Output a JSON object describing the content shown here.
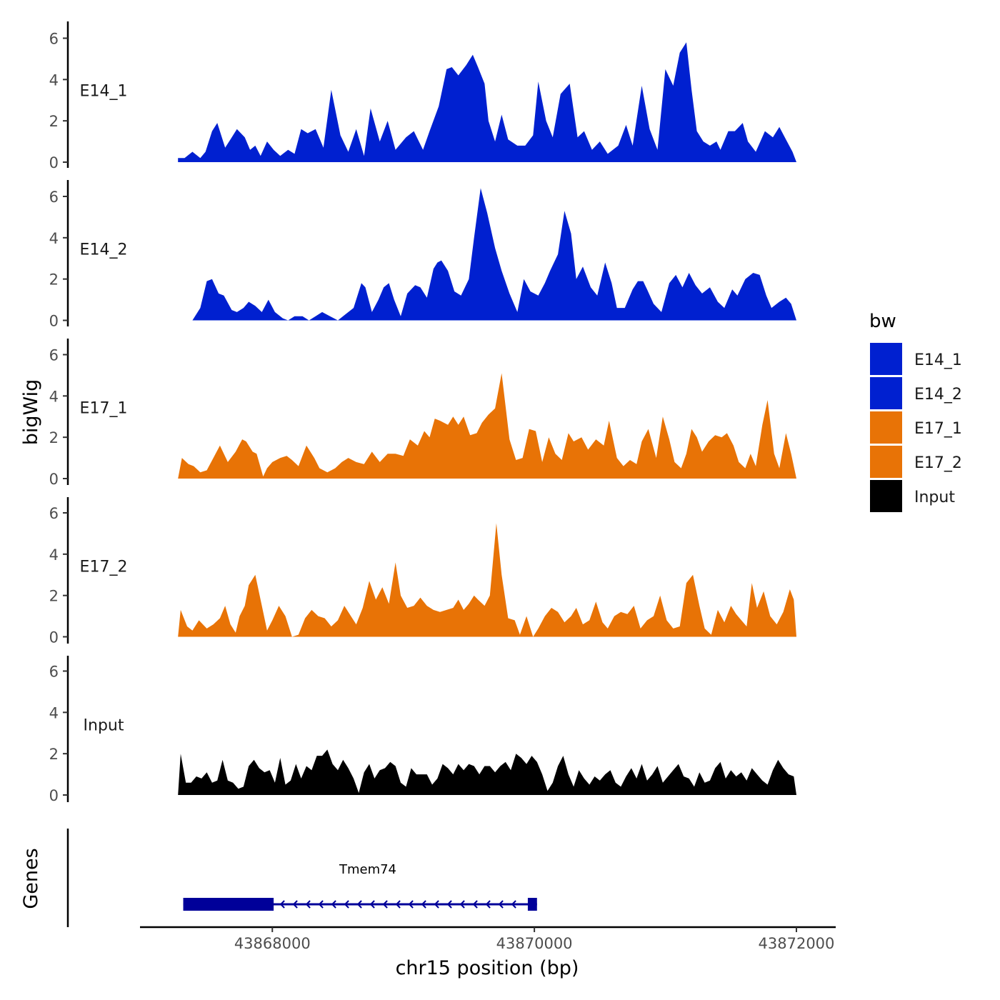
{
  "chart_data": {
    "type": "area",
    "title": "",
    "xlabel": "chr15 position (bp)",
    "ylabel": "bigWig",
    "genes_axis_label": "Genes",
    "xlim": [
      43866990,
      43872300
    ],
    "ylim": [
      0,
      6.7
    ],
    "x_ticks": [
      43868000,
      43870000,
      43872000
    ],
    "x_tick_labels": [
      "43868000",
      "43870000",
      "43872000"
    ],
    "y_ticks": [
      0,
      2,
      4,
      6
    ],
    "y_tick_labels": [
      "0",
      "2",
      "4",
      "6"
    ],
    "legend": {
      "title": "bw",
      "position": "right",
      "entries": [
        {
          "name": "E14_1",
          "color": "#0020D0"
        },
        {
          "name": "E14_2",
          "color": "#0020D0"
        },
        {
          "name": "E17_1",
          "color": "#E87306"
        },
        {
          "name": "E17_2",
          "color": "#E87306"
        },
        {
          "name": "Input",
          "color": "#000000"
        }
      ]
    },
    "series": [
      {
        "name": "E14_1",
        "color": "#0020D0",
        "x": [
          43867280,
          43867330,
          43867390,
          43867450,
          43867490,
          43867540,
          43867580,
          43867640,
          43867680,
          43867730,
          43867790,
          43867830,
          43867870,
          43867910,
          43867960,
          43868010,
          43868060,
          43868120,
          43868170,
          43868220,
          43868270,
          43868330,
          43868390,
          43868450,
          43868520,
          43868580,
          43868640,
          43868700,
          43868750,
          43868820,
          43868880,
          43868940,
          43869020,
          43869080,
          43869150,
          43869200,
          43869270,
          43869330,
          43869370,
          43869420,
          43869480,
          43869530,
          43869570,
          43869620,
          43869650,
          43869700,
          43869750,
          43869800,
          43869870,
          43869930,
          43869990,
          43870030,
          43870090,
          43870140,
          43870200,
          43870270,
          43870330,
          43870380,
          43870440,
          43870500,
          43870560,
          43870640,
          43870700,
          43870750,
          43870820,
          43870880,
          43870940,
          43871000,
          43871060,
          43871110,
          43871160,
          43871200,
          43871240,
          43871290,
          43871340,
          43871390,
          43871420,
          43871480,
          43871530,
          43871590,
          43871630,
          43871690,
          43871760,
          43871820,
          43871870,
          43871920,
          43871970,
          43872000
        ],
        "values": [
          0.2,
          0.2,
          0.5,
          0.2,
          0.5,
          1.5,
          1.9,
          0.7,
          1.1,
          1.6,
          1.2,
          0.6,
          0.8,
          0.3,
          1.0,
          0.6,
          0.3,
          0.6,
          0.4,
          1.6,
          1.4,
          1.6,
          0.7,
          3.5,
          1.3,
          0.5,
          1.6,
          0.3,
          2.6,
          1.0,
          2.0,
          0.6,
          1.2,
          1.5,
          0.6,
          1.5,
          2.7,
          4.5,
          4.6,
          4.2,
          4.7,
          5.2,
          4.6,
          3.8,
          2.0,
          1.0,
          2.3,
          1.1,
          0.8,
          0.8,
          1.3,
          3.9,
          2.0,
          1.2,
          3.3,
          3.8,
          1.2,
          1.5,
          0.6,
          1.0,
          0.4,
          0.8,
          1.8,
          0.8,
          3.7,
          1.6,
          0.6,
          4.5,
          3.7,
          5.3,
          5.8,
          3.5,
          1.5,
          1.0,
          0.8,
          1.0,
          0.6,
          1.5,
          1.5,
          1.9,
          1.0,
          0.5,
          1.5,
          1.2,
          1.7,
          1.1,
          0.5,
          0.0
        ]
      },
      {
        "name": "E14_2",
        "color": "#0020D0",
        "x": [
          43867390,
          43867450,
          43867500,
          43867540,
          43867590,
          43867630,
          43867690,
          43867730,
          43867780,
          43867820,
          43867870,
          43867920,
          43867970,
          43868020,
          43868080,
          43868120,
          43868170,
          43868230,
          43868280,
          43868330,
          43868380,
          43868440,
          43868500,
          43868560,
          43868620,
          43868680,
          43868710,
          43868760,
          43868810,
          43868850,
          43868890,
          43868930,
          43868980,
          43869030,
          43869090,
          43869130,
          43869180,
          43869230,
          43869260,
          43869290,
          43869340,
          43869390,
          43869440,
          43869500,
          43869540,
          43869590,
          43869640,
          43869700,
          43869750,
          43869810,
          43869870,
          43869920,
          43869970,
          43870030,
          43870080,
          43870120,
          43870180,
          43870230,
          43870280,
          43870320,
          43870370,
          43870430,
          43870480,
          43870540,
          43870590,
          43870630,
          43870690,
          43870750,
          43870790,
          43870830,
          43870860,
          43870910,
          43870970,
          43871030,
          43871080,
          43871130,
          43871180,
          43871230,
          43871280,
          43871340,
          43871400,
          43871450,
          43871510,
          43871550,
          43871610,
          43871670,
          43871720,
          43871770,
          43871810,
          43871870,
          43871920,
          43871960,
          43872000
        ],
        "values": [
          0.0,
          0.6,
          1.9,
          2.0,
          1.3,
          1.2,
          0.5,
          0.4,
          0.6,
          0.9,
          0.7,
          0.4,
          1.0,
          0.4,
          0.1,
          0.0,
          0.2,
          0.2,
          0.0,
          0.2,
          0.4,
          0.2,
          0.0,
          0.3,
          0.6,
          1.8,
          1.6,
          0.4,
          1.0,
          1.6,
          1.8,
          1.0,
          0.2,
          1.3,
          1.7,
          1.6,
          1.1,
          2.5,
          2.8,
          2.9,
          2.4,
          1.4,
          1.2,
          2.0,
          4.0,
          6.4,
          5.2,
          3.5,
          2.4,
          1.3,
          0.4,
          2.0,
          1.4,
          1.2,
          1.8,
          2.4,
          3.2,
          5.3,
          4.2,
          2.0,
          2.6,
          1.6,
          1.2,
          2.8,
          1.8,
          0.6,
          0.6,
          1.5,
          1.9,
          1.9,
          1.5,
          0.8,
          0.4,
          1.8,
          2.2,
          1.6,
          2.3,
          1.7,
          1.3,
          1.6,
          0.9,
          0.6,
          1.5,
          1.2,
          2.0,
          2.3,
          2.2,
          1.2,
          0.6,
          0.9,
          1.1,
          0.8,
          0.0
        ]
      },
      {
        "name": "E17_1",
        "color": "#E87306",
        "x": [
          43867280,
          43867310,
          43867360,
          43867400,
          43867450,
          43867500,
          43867550,
          43867600,
          43867660,
          43867720,
          43867770,
          43867800,
          43867850,
          43867880,
          43867930,
          43867960,
          43868000,
          43868060,
          43868110,
          43868150,
          43868200,
          43868260,
          43868320,
          43868360,
          43868420,
          43868480,
          43868530,
          43868580,
          43868640,
          43868700,
          43868760,
          43868820,
          43868880,
          43868940,
          43869000,
          43869050,
          43869110,
          43869160,
          43869200,
          43869240,
          43869280,
          43869340,
          43869380,
          43869420,
          43869460,
          43869510,
          43869560,
          43869600,
          43869650,
          43869700,
          43869750,
          43869810,
          43869860,
          43869910,
          43869960,
          43870010,
          43870060,
          43870110,
          43870160,
          43870210,
          43870260,
          43870300,
          43870360,
          43870410,
          43870470,
          43870530,
          43870570,
          43870630,
          43870680,
          43870730,
          43870780,
          43870820,
          43870870,
          43870930,
          43870980,
          43871030,
          43871070,
          43871120,
          43871160,
          43871200,
          43871240,
          43871280,
          43871330,
          43871380,
          43871430,
          43871470,
          43871520,
          43871560,
          43871610,
          43871650,
          43871690,
          43871740,
          43871780,
          43871830,
          43871870,
          43871920,
          43871960,
          43872000
        ],
        "values": [
          0.0,
          1.0,
          0.7,
          0.6,
          0.3,
          0.4,
          1.0,
          1.6,
          0.8,
          1.3,
          1.9,
          1.8,
          1.3,
          1.2,
          0.1,
          0.5,
          0.8,
          1.0,
          1.1,
          0.9,
          0.6,
          1.6,
          1.0,
          0.5,
          0.3,
          0.5,
          0.8,
          1.0,
          0.8,
          0.7,
          1.3,
          0.8,
          1.2,
          1.2,
          1.1,
          1.9,
          1.6,
          2.3,
          2.0,
          2.9,
          2.8,
          2.6,
          3.0,
          2.6,
          3.0,
          2.1,
          2.2,
          2.7,
          3.1,
          3.4,
          5.1,
          1.9,
          0.9,
          1.0,
          2.4,
          2.3,
          0.8,
          2.0,
          1.2,
          0.9,
          2.2,
          1.8,
          2.0,
          1.4,
          1.9,
          1.6,
          2.8,
          1.0,
          0.6,
          0.9,
          0.7,
          1.8,
          2.4,
          1.0,
          3.0,
          1.9,
          0.8,
          0.5,
          1.2,
          2.4,
          2.0,
          1.3,
          1.8,
          2.1,
          2.0,
          2.2,
          1.6,
          0.8,
          0.5,
          1.2,
          0.6,
          2.6,
          3.8,
          1.2,
          0.5,
          2.2,
          1.2,
          0.0
        ]
      },
      {
        "name": "E17_2",
        "color": "#E87306",
        "x": [
          43867280,
          43867300,
          43867350,
          43867390,
          43867440,
          43867500,
          43867550,
          43867600,
          43867640,
          43867680,
          43867720,
          43867750,
          43867790,
          43867820,
          43867870,
          43867920,
          43867960,
          43868000,
          43868050,
          43868100,
          43868150,
          43868200,
          43868250,
          43868300,
          43868350,
          43868400,
          43868450,
          43868500,
          43868550,
          43868600,
          43868640,
          43868690,
          43868740,
          43868790,
          43868840,
          43868890,
          43868940,
          43868980,
          43869030,
          43869080,
          43869130,
          43869180,
          43869230,
          43869280,
          43869330,
          43869380,
          43869420,
          43869460,
          43869500,
          43869540,
          43869570,
          43869620,
          43869660,
          43869710,
          43869750,
          43869800,
          43869850,
          43869890,
          43869940,
          43869990,
          43870030,
          43870080,
          43870130,
          43870180,
          43870230,
          43870280,
          43870320,
          43870370,
          43870420,
          43870470,
          43870520,
          43870560,
          43870610,
          43870660,
          43870710,
          43870760,
          43870810,
          43870860,
          43870910,
          43870960,
          43871010,
          43871060,
          43871110,
          43871160,
          43871210,
          43871260,
          43871300,
          43871350,
          43871400,
          43871450,
          43871500,
          43871540,
          43871580,
          43871620,
          43871660,
          43871700,
          43871750,
          43871800,
          43871850,
          43871900,
          43871950,
          43871980,
          43872000
        ],
        "values": [
          0.0,
          1.3,
          0.5,
          0.3,
          0.8,
          0.4,
          0.6,
          0.9,
          1.5,
          0.6,
          0.2,
          1.0,
          1.5,
          2.5,
          3.0,
          1.5,
          0.3,
          0.8,
          1.5,
          1.0,
          0.0,
          0.1,
          0.9,
          1.3,
          1.0,
          0.9,
          0.5,
          0.8,
          1.5,
          1.0,
          0.6,
          1.4,
          2.7,
          1.8,
          2.4,
          1.6,
          3.6,
          2.0,
          1.4,
          1.5,
          1.9,
          1.5,
          1.3,
          1.2,
          1.3,
          1.4,
          1.8,
          1.3,
          1.6,
          2.0,
          1.8,
          1.5,
          2.0,
          5.5,
          3.0,
          0.9,
          0.8,
          0.1,
          1.0,
          0.0,
          0.4,
          1.0,
          1.4,
          1.2,
          0.7,
          1.0,
          1.4,
          0.6,
          0.8,
          1.7,
          0.7,
          0.4,
          1.0,
          1.2,
          1.1,
          1.5,
          0.4,
          0.8,
          1.0,
          2.0,
          0.8,
          0.4,
          0.5,
          2.6,
          3.0,
          1.5,
          0.4,
          0.1,
          1.3,
          0.7,
          1.5,
          1.1,
          0.8,
          0.5,
          2.6,
          1.4,
          2.2,
          1.0,
          0.6,
          1.2,
          2.3,
          1.8,
          0.0
        ]
      },
      {
        "name": "Input",
        "color": "#000000",
        "x": [
          43867280,
          43867300,
          43867340,
          43867380,
          43867420,
          43867460,
          43867500,
          43867540,
          43867580,
          43867620,
          43867660,
          43867700,
          43867740,
          43867780,
          43867820,
          43867860,
          43867900,
          43867940,
          43867980,
          43868020,
          43868060,
          43868100,
          43868140,
          43868180,
          43868220,
          43868260,
          43868300,
          43868340,
          43868380,
          43868420,
          43868460,
          43868500,
          43868540,
          43868580,
          43868620,
          43868660,
          43868700,
          43868740,
          43868780,
          43868820,
          43868860,
          43868900,
          43868940,
          43868980,
          43869020,
          43869060,
          43869100,
          43869140,
          43869180,
          43869220,
          43869260,
          43869300,
          43869340,
          43869380,
          43869420,
          43869460,
          43869500,
          43869540,
          43869580,
          43869620,
          43869660,
          43869700,
          43869740,
          43869780,
          43869820,
          43869860,
          43869900,
          43869940,
          43869980,
          43870020,
          43870060,
          43870100,
          43870140,
          43870180,
          43870220,
          43870260,
          43870300,
          43870340,
          43870380,
          43870420,
          43870460,
          43870500,
          43870540,
          43870580,
          43870620,
          43870660,
          43870700,
          43870740,
          43870780,
          43870820,
          43870860,
          43870900,
          43870940,
          43870980,
          43871020,
          43871060,
          43871100,
          43871140,
          43871180,
          43871220,
          43871260,
          43871300,
          43871340,
          43871380,
          43871420,
          43871460,
          43871500,
          43871540,
          43871580,
          43871620,
          43871660,
          43871700,
          43871740,
          43871780,
          43871820,
          43871860,
          43871900,
          43871940,
          43871980,
          43872000
        ],
        "values": [
          0.0,
          2.0,
          0.6,
          0.6,
          0.9,
          0.8,
          1.1,
          0.6,
          0.7,
          1.7,
          0.7,
          0.6,
          0.3,
          0.4,
          1.4,
          1.7,
          1.3,
          1.1,
          1.2,
          0.6,
          1.8,
          0.5,
          0.7,
          1.5,
          0.8,
          1.4,
          1.2,
          1.9,
          1.9,
          2.2,
          1.5,
          1.2,
          1.7,
          1.3,
          0.8,
          0.1,
          1.1,
          1.5,
          0.8,
          1.2,
          1.3,
          1.6,
          1.4,
          0.6,
          0.4,
          1.3,
          1.0,
          1.0,
          1.0,
          0.5,
          0.8,
          1.5,
          1.3,
          1.0,
          1.5,
          1.2,
          1.5,
          1.4,
          1.0,
          1.4,
          1.4,
          1.1,
          1.4,
          1.6,
          1.2,
          2.0,
          1.8,
          1.5,
          1.9,
          1.6,
          1.0,
          0.2,
          0.6,
          1.4,
          1.9,
          1.0,
          0.4,
          1.2,
          0.8,
          0.5,
          0.9,
          0.7,
          1.0,
          1.2,
          0.6,
          0.4,
          0.9,
          1.3,
          0.8,
          1.5,
          0.7,
          1.0,
          1.4,
          0.6,
          0.9,
          1.2,
          1.5,
          0.9,
          0.8,
          0.4,
          1.1,
          0.6,
          0.7,
          1.3,
          1.6,
          0.8,
          1.2,
          0.9,
          1.1,
          0.7,
          1.3,
          1.0,
          0.7,
          0.5,
          1.2,
          1.7,
          1.3,
          1.0,
          0.9,
          0.0
        ]
      }
    ],
    "gene": {
      "name": "Tmem74",
      "strand": "-",
      "color": "#000099",
      "start": 43867320,
      "end": 43870020,
      "exons": [
        [
          43867320,
          43868010
        ],
        [
          43869950,
          43870020
        ]
      ]
    }
  }
}
